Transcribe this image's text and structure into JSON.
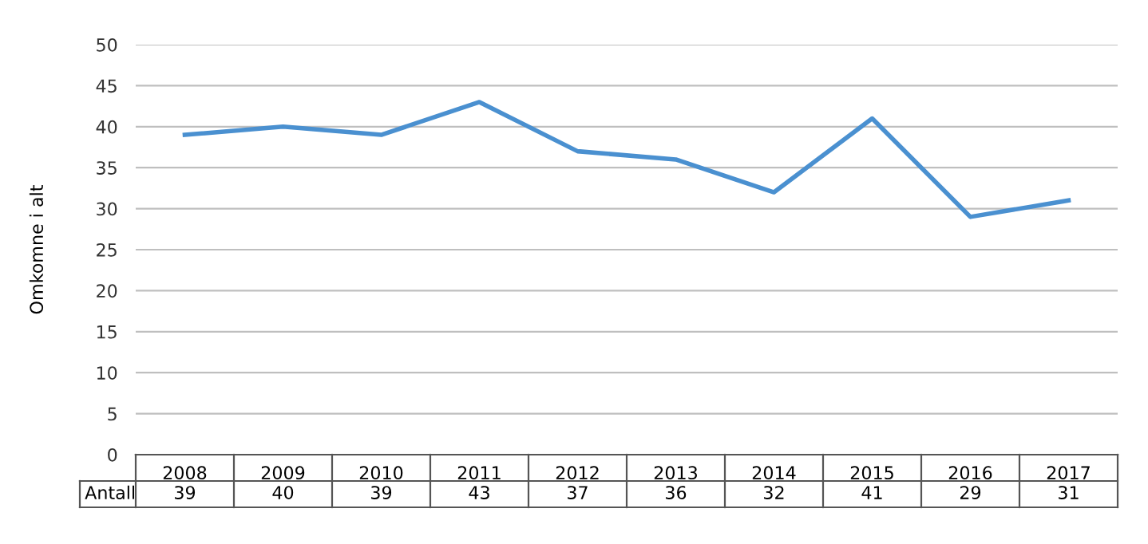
{
  "chart_data": {
    "type": "line",
    "ylabel": "Omkomne i alt",
    "categories": [
      "2008",
      "2009",
      "2010",
      "2011",
      "2012",
      "2013",
      "2014",
      "2015",
      "2016",
      "2017"
    ],
    "series": [
      {
        "name": "Antall",
        "color": "#4a90d0",
        "values": [
          39,
          40,
          39,
          43,
          37,
          36,
          32,
          41,
          29,
          31
        ]
      }
    ],
    "ylim": [
      0,
      50
    ],
    "yticks": [
      0,
      5,
      10,
      15,
      20,
      25,
      30,
      35,
      40,
      45,
      50
    ],
    "grid": "y",
    "marker": "none",
    "line_style": "solid",
    "data_labels": true
  }
}
